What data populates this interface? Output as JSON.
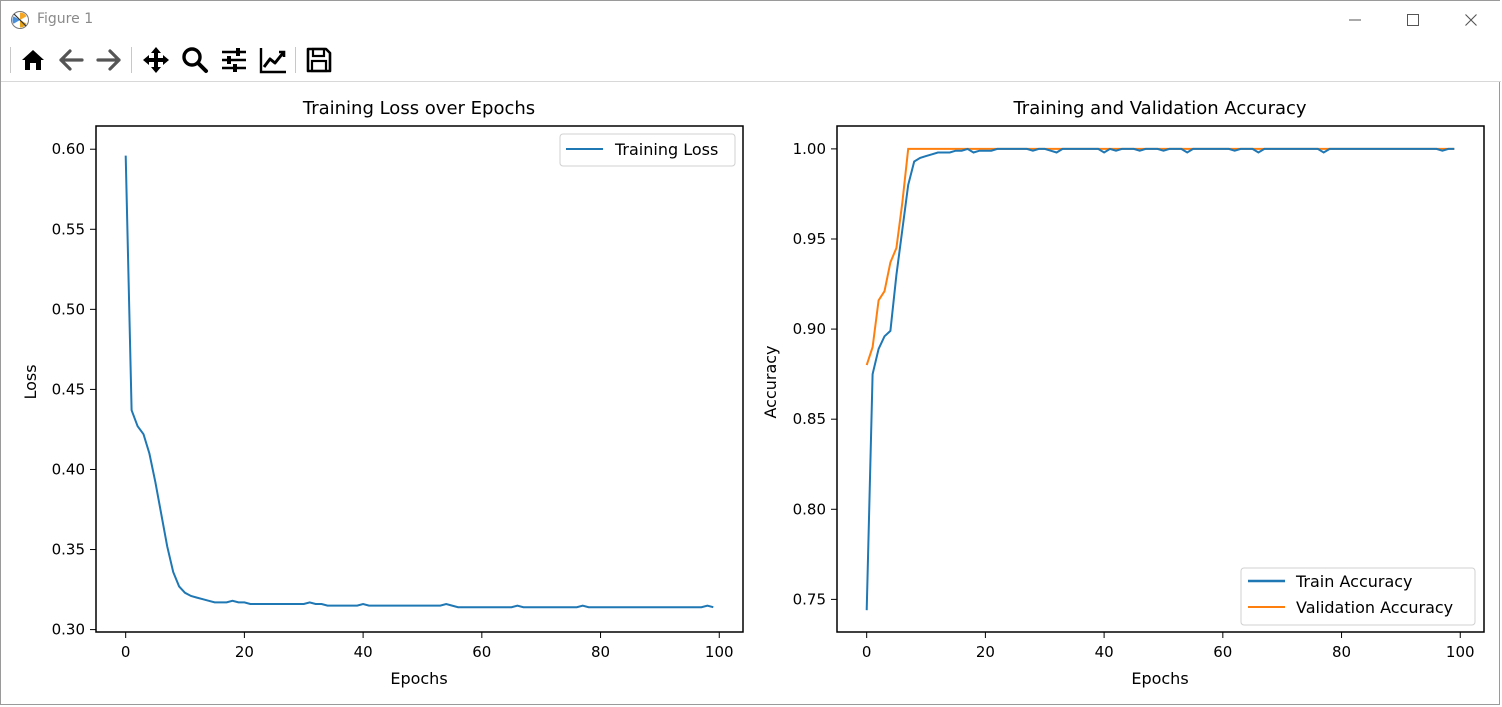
{
  "window": {
    "title": "Figure 1",
    "controls": [
      "minimize",
      "maximize",
      "close"
    ]
  },
  "toolbar": {
    "tools": [
      {
        "name": "home",
        "icon": "home-icon"
      },
      {
        "name": "back",
        "icon": "arrow-left-icon"
      },
      {
        "name": "forward",
        "icon": "arrow-right-icon"
      },
      {
        "name": "pan",
        "icon": "move-icon"
      },
      {
        "name": "zoom",
        "icon": "magnifier-icon"
      },
      {
        "name": "configure-subplots",
        "icon": "sliders-icon"
      },
      {
        "name": "edit-axes",
        "icon": "line-chart-icon"
      },
      {
        "name": "save",
        "icon": "floppy-disk-icon"
      }
    ]
  },
  "colors": {
    "train": "#1f77b4",
    "validation": "#ff7f0e"
  },
  "chart_data": [
    {
      "type": "line",
      "title": "Training Loss over Epochs",
      "xlabel": "Epochs",
      "ylabel": "Loss",
      "xlim": [
        -5,
        104
      ],
      "ylim": [
        0.2985,
        0.6145
      ],
      "xticks": [
        "0",
        "20",
        "40",
        "60",
        "80",
        "100"
      ],
      "yticks": [
        "0.30",
        "0.35",
        "0.40",
        "0.45",
        "0.50",
        "0.55",
        "0.60"
      ],
      "legend_position": "upper right",
      "series": [
        {
          "name": "Training Loss",
          "color": "#1f77b4",
          "x": [
            0,
            1,
            2,
            3,
            4,
            5,
            6,
            7,
            8,
            9,
            10,
            11,
            12,
            13,
            14,
            15,
            16,
            17,
            18,
            19,
            20,
            21,
            22,
            23,
            24,
            25,
            26,
            27,
            28,
            29,
            30,
            31,
            32,
            33,
            34,
            35,
            36,
            37,
            38,
            39,
            40,
            41,
            42,
            43,
            44,
            45,
            46,
            47,
            48,
            49,
            50,
            51,
            52,
            53,
            54,
            55,
            56,
            57,
            58,
            59,
            60,
            61,
            62,
            63,
            64,
            65,
            66,
            67,
            68,
            69,
            70,
            71,
            72,
            73,
            74,
            75,
            76,
            77,
            78,
            79,
            80,
            81,
            82,
            83,
            84,
            85,
            86,
            87,
            88,
            89,
            90,
            91,
            92,
            93,
            94,
            95,
            96,
            97,
            98,
            99
          ],
          "y": [
            0.596,
            0.437,
            0.427,
            0.422,
            0.41,
            0.392,
            0.372,
            0.352,
            0.336,
            0.327,
            0.323,
            0.321,
            0.32,
            0.319,
            0.318,
            0.317,
            0.317,
            0.317,
            0.318,
            0.317,
            0.317,
            0.316,
            0.316,
            0.316,
            0.316,
            0.316,
            0.316,
            0.316,
            0.316,
            0.316,
            0.316,
            0.317,
            0.316,
            0.316,
            0.315,
            0.315,
            0.315,
            0.315,
            0.315,
            0.315,
            0.316,
            0.315,
            0.315,
            0.315,
            0.315,
            0.315,
            0.315,
            0.315,
            0.315,
            0.315,
            0.315,
            0.315,
            0.315,
            0.315,
            0.316,
            0.315,
            0.314,
            0.314,
            0.314,
            0.314,
            0.314,
            0.314,
            0.314,
            0.314,
            0.314,
            0.314,
            0.315,
            0.314,
            0.314,
            0.314,
            0.314,
            0.314,
            0.314,
            0.314,
            0.314,
            0.314,
            0.314,
            0.315,
            0.314,
            0.314,
            0.314,
            0.314,
            0.314,
            0.314,
            0.314,
            0.314,
            0.314,
            0.314,
            0.314,
            0.314,
            0.314,
            0.314,
            0.314,
            0.314,
            0.314,
            0.314,
            0.314,
            0.314,
            0.315,
            0.314
          ]
        }
      ]
    },
    {
      "type": "line",
      "title": "Training and Validation Accuracy",
      "xlabel": "Epochs",
      "ylabel": "Accuracy",
      "xlim": [
        -5,
        104
      ],
      "ylim": [
        0.7319,
        1.0127
      ],
      "xticks": [
        "0",
        "20",
        "40",
        "60",
        "80",
        "100"
      ],
      "yticks": [
        "0.75",
        "0.80",
        "0.85",
        "0.90",
        "0.95",
        "1.00"
      ],
      "legend_position": "lower right",
      "series": [
        {
          "name": "Train Accuracy",
          "color": "#1f77b4",
          "x": [
            0,
            1,
            2,
            3,
            4,
            5,
            6,
            7,
            8,
            9,
            10,
            11,
            12,
            13,
            14,
            15,
            16,
            17,
            18,
            19,
            20,
            21,
            22,
            23,
            24,
            25,
            26,
            27,
            28,
            29,
            30,
            31,
            32,
            33,
            34,
            35,
            36,
            37,
            38,
            39,
            40,
            41,
            42,
            43,
            44,
            45,
            46,
            47,
            48,
            49,
            50,
            51,
            52,
            53,
            54,
            55,
            56,
            57,
            58,
            59,
            60,
            61,
            62,
            63,
            64,
            65,
            66,
            67,
            68,
            69,
            70,
            71,
            72,
            73,
            74,
            75,
            76,
            77,
            78,
            79,
            80,
            81,
            82,
            83,
            84,
            85,
            86,
            87,
            88,
            89,
            90,
            91,
            92,
            93,
            94,
            95,
            96,
            97,
            98,
            99
          ],
          "y": [
            0.744,
            0.875,
            0.889,
            0.896,
            0.899,
            0.93,
            0.955,
            0.98,
            0.993,
            0.995,
            0.996,
            0.997,
            0.998,
            0.998,
            0.998,
            0.999,
            0.999,
            1.0,
            0.998,
            0.999,
            0.999,
            0.999,
            1.0,
            1.0,
            1.0,
            1.0,
            1.0,
            1.0,
            0.999,
            1.0,
            1.0,
            0.999,
            0.998,
            1.0,
            1.0,
            1.0,
            1.0,
            1.0,
            1.0,
            1.0,
            0.998,
            1.0,
            0.999,
            1.0,
            1.0,
            1.0,
            0.999,
            1.0,
            1.0,
            1.0,
            0.999,
            1.0,
            1.0,
            1.0,
            0.998,
            1.0,
            1.0,
            1.0,
            1.0,
            1.0,
            1.0,
            1.0,
            0.999,
            1.0,
            1.0,
            1.0,
            0.998,
            1.0,
            1.0,
            1.0,
            1.0,
            1.0,
            1.0,
            1.0,
            1.0,
            1.0,
            1.0,
            0.998,
            1.0,
            1.0,
            1.0,
            1.0,
            1.0,
            1.0,
            1.0,
            1.0,
            1.0,
            1.0,
            1.0,
            1.0,
            1.0,
            1.0,
            1.0,
            1.0,
            1.0,
            1.0,
            1.0,
            0.999,
            1.0,
            1.0
          ]
        },
        {
          "name": "Validation Accuracy",
          "color": "#ff7f0e",
          "x": [
            0,
            1,
            2,
            3,
            4,
            5,
            6,
            7,
            8,
            9,
            10,
            11,
            12,
            13,
            14,
            15,
            16,
            17,
            18,
            19,
            20,
            21,
            22,
            23,
            24,
            25,
            26,
            27,
            28,
            29,
            30,
            31,
            32,
            33,
            34,
            35,
            36,
            37,
            38,
            39,
            40,
            41,
            42,
            43,
            44,
            45,
            46,
            47,
            48,
            49,
            50,
            51,
            52,
            53,
            54,
            55,
            56,
            57,
            58,
            59,
            60,
            61,
            62,
            63,
            64,
            65,
            66,
            67,
            68,
            69,
            70,
            71,
            72,
            73,
            74,
            75,
            76,
            77,
            78,
            79,
            80,
            81,
            82,
            83,
            84,
            85,
            86,
            87,
            88,
            89,
            90,
            91,
            92,
            93,
            94,
            95,
            96,
            97,
            98,
            99
          ],
          "y": [
            0.88,
            0.89,
            0.916,
            0.921,
            0.937,
            0.945,
            0.97,
            1.0,
            1.0,
            1.0,
            1.0,
            1.0,
            1.0,
            1.0,
            1.0,
            1.0,
            1.0,
            1.0,
            1.0,
            1.0,
            1.0,
            1.0,
            1.0,
            1.0,
            1.0,
            1.0,
            1.0,
            1.0,
            1.0,
            1.0,
            1.0,
            1.0,
            1.0,
            1.0,
            1.0,
            1.0,
            1.0,
            1.0,
            1.0,
            1.0,
            1.0,
            1.0,
            1.0,
            1.0,
            1.0,
            1.0,
            1.0,
            1.0,
            1.0,
            1.0,
            1.0,
            1.0,
            1.0,
            1.0,
            1.0,
            1.0,
            1.0,
            1.0,
            1.0,
            1.0,
            1.0,
            1.0,
            1.0,
            1.0,
            1.0,
            1.0,
            1.0,
            1.0,
            1.0,
            1.0,
            1.0,
            1.0,
            1.0,
            1.0,
            1.0,
            1.0,
            1.0,
            1.0,
            1.0,
            1.0,
            1.0,
            1.0,
            1.0,
            1.0,
            1.0,
            1.0,
            1.0,
            1.0,
            1.0,
            1.0,
            1.0,
            1.0,
            1.0,
            1.0,
            1.0,
            1.0,
            1.0,
            1.0,
            1.0,
            1.0
          ]
        }
      ]
    }
  ]
}
